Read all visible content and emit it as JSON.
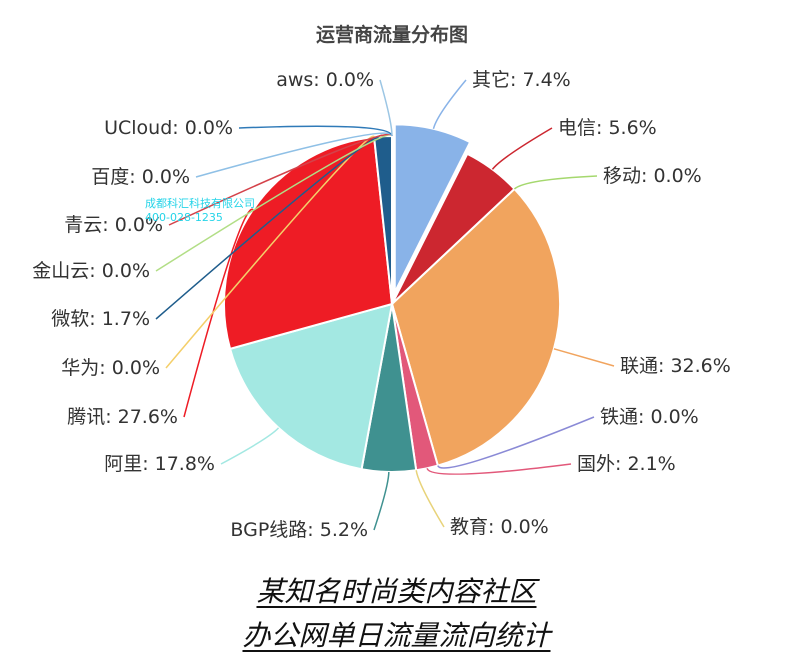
{
  "chart_data": {
    "type": "pie",
    "title": "运营商流量分布图",
    "slices": [
      {
        "name": "其它",
        "value": 7.4,
        "label": "其它: 7.4%",
        "color": "#89b3e8",
        "exploded": true
      },
      {
        "name": "电信",
        "value": 5.6,
        "label": "电信: 5.6%",
        "color": "#cc2730"
      },
      {
        "name": "移动",
        "value": 0.0,
        "label": "移动: 0.0%",
        "color": "#a5d86e"
      },
      {
        "name": "联通",
        "value": 32.6,
        "label": "联通: 32.6%",
        "color": "#f1a45e"
      },
      {
        "name": "铁通",
        "value": 0.0,
        "label": "铁通: 0.0%",
        "color": "#8a8ad6"
      },
      {
        "name": "国外",
        "value": 2.1,
        "label": "国外: 2.1%",
        "color": "#e2587a"
      },
      {
        "name": "教育",
        "value": 0.0,
        "label": "教育: 0.0%",
        "color": "#e8d37a"
      },
      {
        "name": "BGP线路",
        "value": 5.2,
        "label": "BGP线路: 5.2%",
        "color": "#3f9190"
      },
      {
        "name": "阿里",
        "value": 17.8,
        "label": "阿里: 17.8%",
        "color": "#a3e8e2"
      },
      {
        "name": "腾讯",
        "value": 27.6,
        "label": "腾讯: 27.6%",
        "color": "#ee1c25"
      },
      {
        "name": "华为",
        "value": 0.0,
        "label": "华为: 0.0%",
        "color": "#f4cf6a"
      },
      {
        "name": "微软",
        "value": 1.7,
        "label": "微软: 1.7%",
        "color": "#1f5d8c"
      },
      {
        "name": "金山云",
        "value": 0.0,
        "label": "金山云: 0.0%",
        "color": "#b2de86"
      },
      {
        "name": "青云",
        "value": 0.0,
        "label": "青云: 0.0%",
        "color": "#d4424a"
      },
      {
        "name": "百度",
        "value": 0.0,
        "label": "百度: 0.0%",
        "color": "#8fc0e6"
      },
      {
        "name": "UCloud",
        "value": 0.0,
        "label": "UCloud: 0.0%",
        "color": "#2f7ab8"
      },
      {
        "name": "aws",
        "value": 0.0,
        "label": "aws: 0.0%",
        "color": "#9cc6e4"
      }
    ]
  },
  "watermark": {
    "line1": "成都科汇科技有限公司",
    "line2": "400-028-1235"
  },
  "caption": {
    "line1": "某知名时尚类内容社区",
    "line2": "办公网单日流量流向统计"
  }
}
